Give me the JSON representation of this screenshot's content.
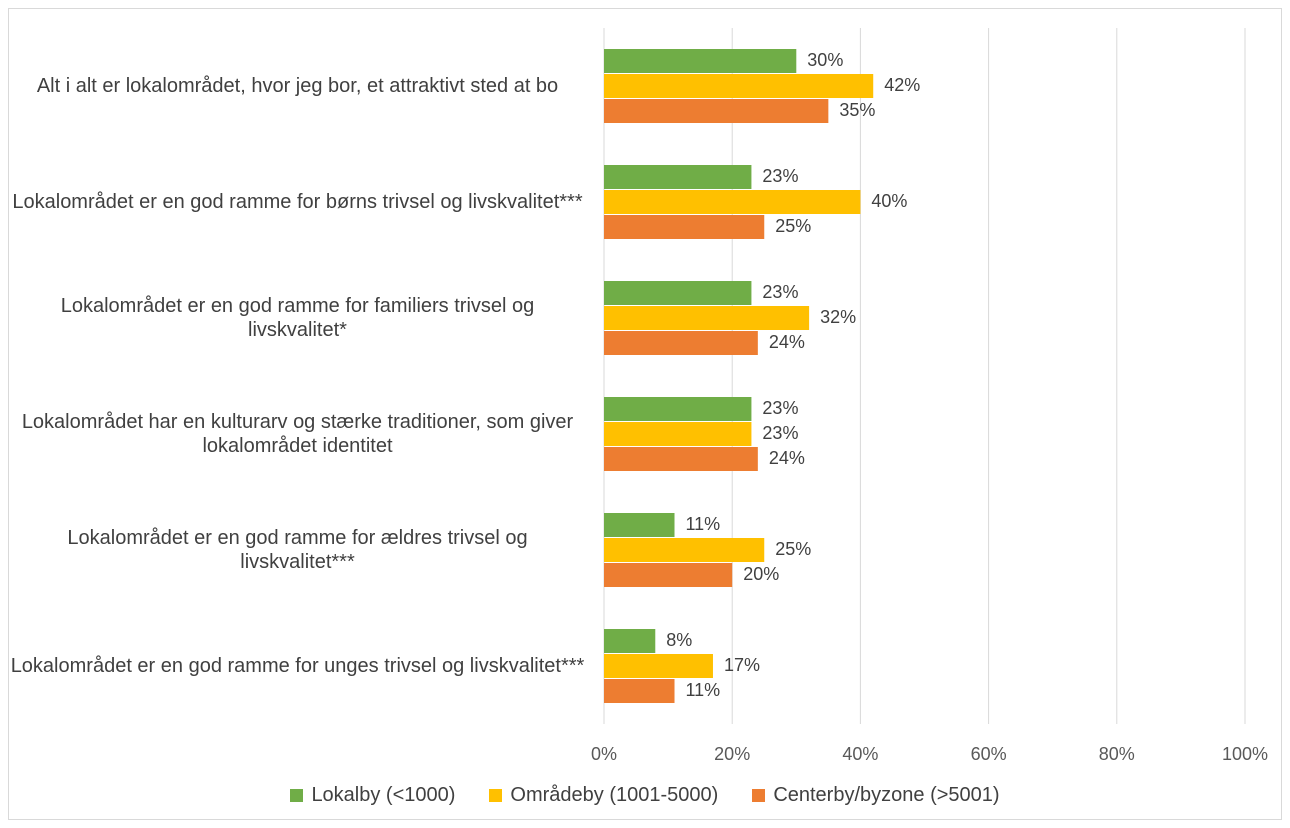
{
  "chart_data": {
    "type": "bar",
    "orientation": "horizontal",
    "categories": [
      "Alt i alt er lokalområdet, hvor jeg bor, et attraktivt sted at bo",
      "Lokalområdet er en god ramme for børns trivsel og livskvalitet***",
      "Lokalområdet er en god ramme for familiers trivsel og livskvalitet*",
      "Lokalområdet har en kulturarv og stærke traditioner, som giver lokalområdet identitet",
      "Lokalområdet er en god ramme for ældres trivsel og livskvalitet***",
      "Lokalområdet er en god ramme for unges trivsel og livskvalitet***"
    ],
    "series": [
      {
        "name": "Lokalby (<1000)",
        "color": "#70ad47",
        "values": [
          30,
          23,
          23,
          23,
          11,
          8
        ],
        "value_labels": [
          "30%",
          "23%",
          "23%",
          "23%",
          "11%",
          "8%"
        ]
      },
      {
        "name": "Områdeby (1001-5000)",
        "color": "#ffc000",
        "values": [
          42,
          40,
          32,
          23,
          25,
          17
        ],
        "value_labels": [
          "42%",
          "40%",
          "32%",
          "23%",
          "25%",
          "17%"
        ]
      },
      {
        "name": "Centerby/byzone (>5001)",
        "color": "#ed7d31",
        "values": [
          35,
          25,
          24,
          24,
          20,
          11
        ],
        "value_labels": [
          "35%",
          "25%",
          "24%",
          "24%",
          "20%",
          "11%"
        ]
      }
    ],
    "xlim": [
      0,
      100
    ],
    "xticks": [
      {
        "value": 0,
        "label": "0%"
      },
      {
        "value": 20,
        "label": "20%"
      },
      {
        "value": 40,
        "label": "40%"
      },
      {
        "value": 60,
        "label": "60%"
      },
      {
        "value": 80,
        "label": "80%"
      },
      {
        "value": 100,
        "label": "100%"
      }
    ],
    "grid": true,
    "legend": "bottom"
  }
}
